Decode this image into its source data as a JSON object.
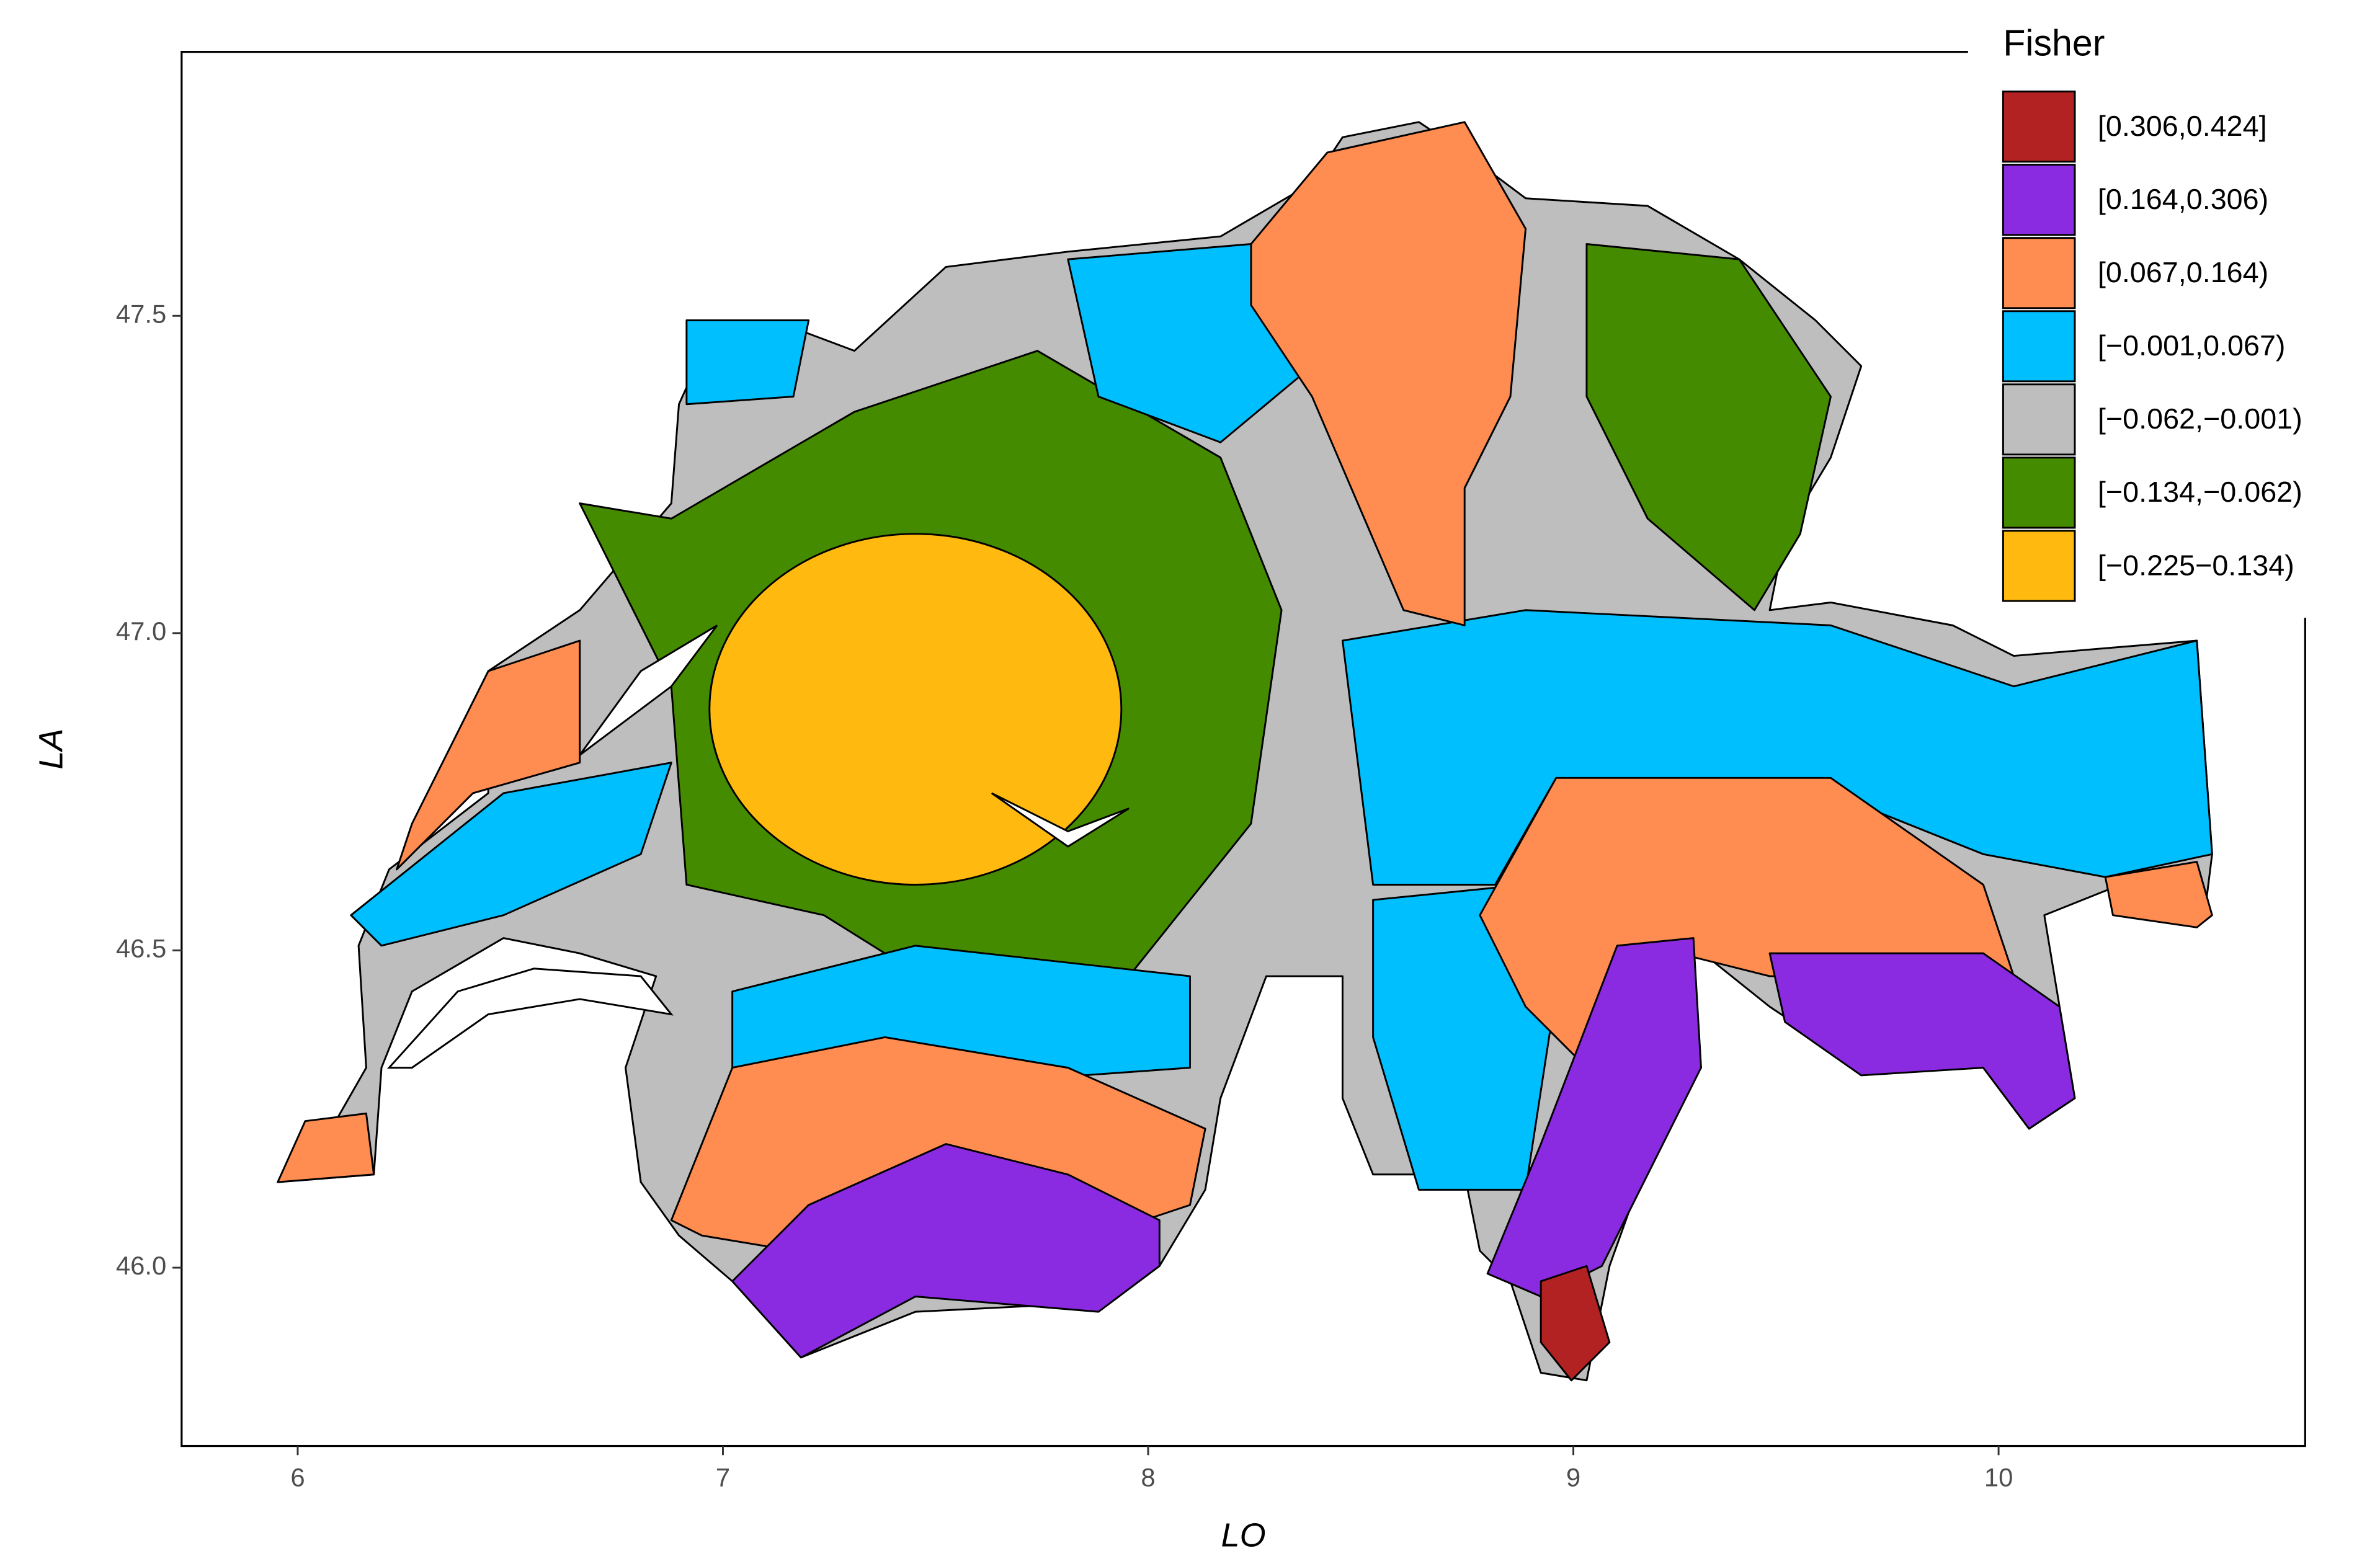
{
  "chart_data": {
    "type": "choropleth",
    "x_label": "LO",
    "y_label": "LA",
    "xlim": [
      5.727,
      10.721
    ],
    "ylim": [
      45.719,
      47.916
    ],
    "xticks": [
      6,
      7,
      8,
      9,
      10
    ],
    "yticks": [
      {
        "value": 46,
        "label": "46.0"
      },
      46.5,
      {
        "value": 47,
        "label": "47.0"
      },
      47.5
    ],
    "legend": {
      "title": "Fisher",
      "position": "top-right",
      "entries": [
        {
          "label": "[0.306,0.424]",
          "color": "#b22222"
        },
        {
          "label": "[0.164,0.306)",
          "color": "#8a2be2"
        },
        {
          "label": "[0.067,0.164)",
          "color": "#ff8c50"
        },
        {
          "label": "[−0.001,0.067)",
          "color": "#00bfff"
        },
        {
          "label": "[−0.062,−0.001)",
          "color": "#bebebe"
        },
        {
          "label": "[−0.134,−0.062)",
          "color": "#458b00"
        },
        {
          "label": "[−0.225−0.134)",
          "color": "#ffb90f"
        }
      ]
    }
  }
}
